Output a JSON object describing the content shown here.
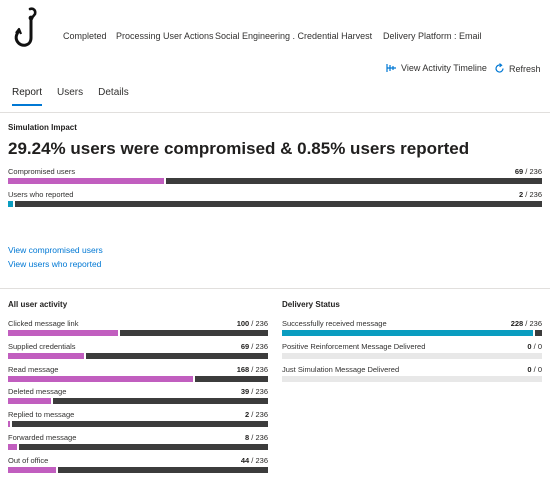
{
  "header": {
    "status": "Completed",
    "phase": "Processing User Actions",
    "technique": "Social Engineering . Credential Harvest",
    "platform": "Delivery Platform : Email"
  },
  "actions": {
    "timeline_label": "View Activity Timeline",
    "refresh_label": "Refresh"
  },
  "tabs": [
    {
      "label": "Report",
      "active": true
    },
    {
      "label": "Users",
      "active": false
    },
    {
      "label": "Details",
      "active": false
    }
  ],
  "impact": {
    "title": "Simulation Impact",
    "headline": "29.24% users were compromised & 0.85% users reported",
    "metrics": [
      {
        "label": "Compromised users",
        "value": "69",
        "total": "236",
        "fraction": 0.2924,
        "color": "#c15ebf"
      },
      {
        "label": "Users who reported",
        "value": "2",
        "total": "236",
        "fraction": 0.0085,
        "color": "#0a9dc0"
      }
    ],
    "links": [
      "View compromised users",
      "View users who reported"
    ]
  },
  "activity": {
    "title": "All user activity",
    "metrics": [
      {
        "label": "Clicked message link",
        "value": "100",
        "total": "236",
        "fraction": 0.4237
      },
      {
        "label": "Supplied credentials",
        "value": "69",
        "total": "236",
        "fraction": 0.2924
      },
      {
        "label": "Read message",
        "value": "168",
        "total": "236",
        "fraction": 0.7119
      },
      {
        "label": "Deleted message",
        "value": "39",
        "total": "236",
        "fraction": 0.1653
      },
      {
        "label": "Replied to message",
        "value": "2",
        "total": "236",
        "fraction": 0.0085
      },
      {
        "label": "Forwarded message",
        "value": "8",
        "total": "236",
        "fraction": 0.0339
      },
      {
        "label": "Out of office",
        "value": "44",
        "total": "236",
        "fraction": 0.1864
      }
    ]
  },
  "delivery": {
    "title": "Delivery Status",
    "metrics": [
      {
        "label": "Successfully received message",
        "value": "228",
        "total": "236",
        "fraction": 0.9661
      },
      {
        "label": "Positive Reinforcement Message Delivered",
        "value": "0",
        "total": "0",
        "fraction": 0
      },
      {
        "label": "Just Simulation Message Delivered",
        "value": "0",
        "total": "0",
        "fraction": 0
      }
    ]
  },
  "colors": {
    "compromised": "#c15ebf",
    "reported": "#0a9dc0",
    "track_dark": "#3c3c3c",
    "track_light": "#e8e8e8",
    "accent": "#0078d4"
  }
}
